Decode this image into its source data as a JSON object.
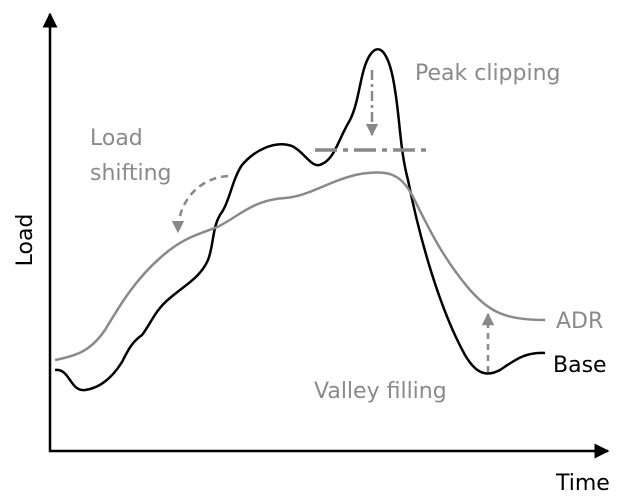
{
  "axes": {
    "y_label": "Load",
    "x_label": "Time"
  },
  "annotations": {
    "peak_clipping": "Peak clipping",
    "load_shifting": [
      "Load",
      "shifting"
    ],
    "valley_filling": "Valley filling"
  },
  "curves": [
    {
      "label": "ADR"
    },
    {
      "label": "Base"
    }
  ]
}
